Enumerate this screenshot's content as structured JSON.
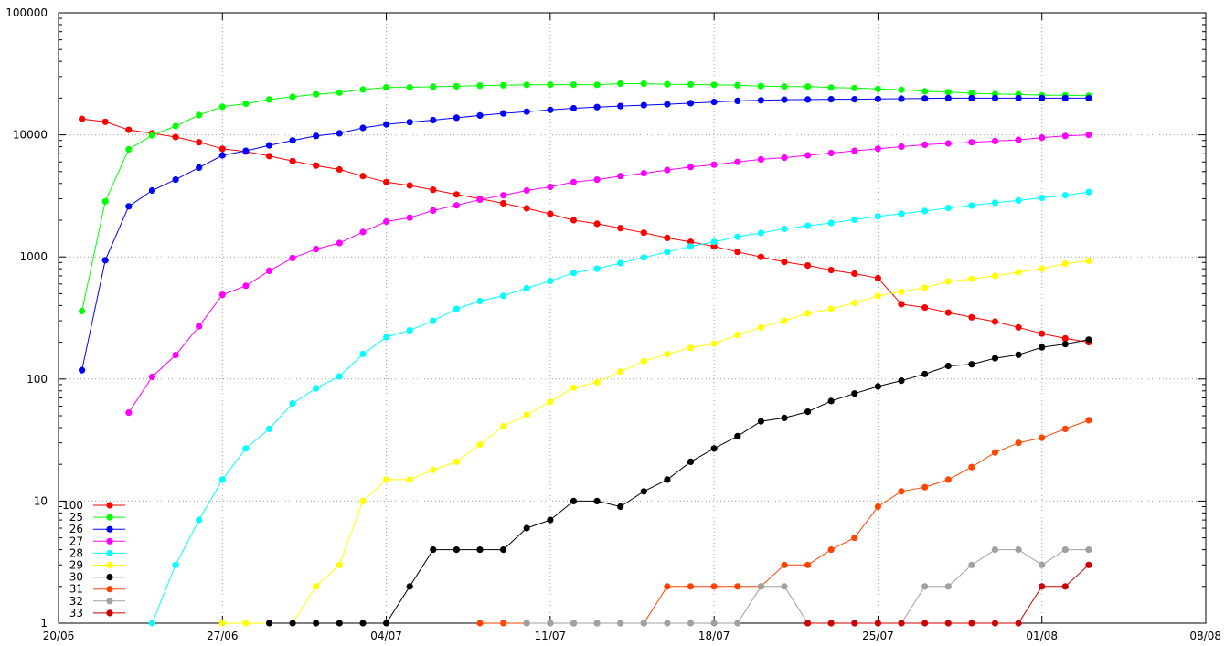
{
  "chart_data": {
    "type": "line",
    "title": "",
    "xlabel": "",
    "ylabel": "",
    "yscale": "log",
    "ylim": [
      1,
      100000
    ],
    "xlim": [
      "2020-06-20",
      "2020-08-08"
    ],
    "grid": true,
    "legend_position": "bottom-left",
    "x_tick_labels": [
      "20/06",
      "27/06",
      "04/07",
      "11/07",
      "18/07",
      "25/07",
      "01/08",
      "08/08"
    ],
    "y_tick_labels": [
      "1",
      "10",
      "100",
      "1000",
      "10000",
      "100000"
    ],
    "x": [
      "2020-06-21",
      "2020-06-22",
      "2020-06-23",
      "2020-06-24",
      "2020-06-25",
      "2020-06-26",
      "2020-06-27",
      "2020-06-28",
      "2020-06-29",
      "2020-06-30",
      "2020-07-01",
      "2020-07-02",
      "2020-07-03",
      "2020-07-04",
      "2020-07-05",
      "2020-07-06",
      "2020-07-07",
      "2020-07-08",
      "2020-07-09",
      "2020-07-10",
      "2020-07-11",
      "2020-07-12",
      "2020-07-13",
      "2020-07-14",
      "2020-07-15",
      "2020-07-16",
      "2020-07-17",
      "2020-07-18",
      "2020-07-19",
      "2020-07-20",
      "2020-07-21",
      "2020-07-22",
      "2020-07-23",
      "2020-07-24",
      "2020-07-25",
      "2020-07-26",
      "2020-07-27",
      "2020-07-28",
      "2020-07-29",
      "2020-07-30",
      "2020-07-31",
      "2020-08-01",
      "2020-08-02",
      "2020-08-03"
    ],
    "series": [
      {
        "name": "100",
        "color": "#ff0000",
        "values": [
          13500,
          12800,
          11000,
          10300,
          9600,
          8700,
          7700,
          7300,
          6700,
          6100,
          5600,
          5200,
          4600,
          4100,
          3850,
          3550,
          3250,
          3000,
          2750,
          2500,
          2250,
          2000,
          1870,
          1720,
          1580,
          1430,
          1330,
          1220,
          1100,
          1000,
          910,
          850,
          780,
          730,
          670,
          410,
          385,
          350,
          320,
          295,
          265,
          235,
          215,
          200
        ]
      },
      {
        "name": "25",
        "color": "#00ff00",
        "values": [
          360,
          2850,
          7600,
          9900,
          11800,
          14500,
          17000,
          18000,
          19500,
          20500,
          21500,
          22200,
          23500,
          24500,
          24500,
          24800,
          25000,
          25300,
          25500,
          25700,
          25800,
          25800,
          25700,
          26300,
          26300,
          26000,
          25900,
          25700,
          25500,
          25100,
          24900,
          24900,
          24400,
          24200,
          23800,
          23400,
          22800,
          22400,
          22000,
          21600,
          21500,
          21100,
          21100,
          20900
        ]
      },
      {
        "name": "26",
        "color": "#0000ff",
        "values": [
          118,
          940,
          2600,
          3500,
          4300,
          5400,
          6800,
          7400,
          8200,
          9000,
          9800,
          10300,
          11400,
          12200,
          12700,
          13200,
          13800,
          14400,
          15000,
          15500,
          16000,
          16500,
          16900,
          17200,
          17500,
          17800,
          18200,
          18600,
          19000,
          19200,
          19400,
          19500,
          19600,
          19600,
          19700,
          19800,
          19900,
          20000,
          20000,
          20000,
          20000,
          20000,
          20000,
          20000
        ]
      },
      {
        "name": "27",
        "color": "#ff00ff",
        "values": [
          null,
          null,
          53,
          104,
          157,
          270,
          490,
          580,
          770,
          980,
          1160,
          1300,
          1600,
          1950,
          2100,
          2400,
          2650,
          2950,
          3200,
          3500,
          3750,
          4100,
          4300,
          4600,
          4850,
          5150,
          5450,
          5700,
          6000,
          6300,
          6500,
          6800,
          7100,
          7400,
          7700,
          8000,
          8300,
          8500,
          8700,
          8900,
          9100,
          9500,
          9800,
          10000
        ]
      },
      {
        "name": "28",
        "color": "#00ffff",
        "values": [
          null,
          null,
          null,
          1,
          3,
          7,
          15,
          27,
          39,
          63,
          84,
          105,
          160,
          220,
          250,
          300,
          375,
          435,
          480,
          555,
          635,
          740,
          800,
          890,
          990,
          1100,
          1220,
          1330,
          1460,
          1570,
          1700,
          1800,
          1900,
          2020,
          2150,
          2260,
          2380,
          2520,
          2640,
          2780,
          2900,
          3050,
          3200,
          3400
        ]
      },
      {
        "name": "29",
        "color": "#ffff00",
        "values": [
          null,
          null,
          null,
          null,
          null,
          null,
          1,
          1,
          1,
          1,
          2,
          3,
          10,
          15,
          15,
          18,
          21,
          29,
          41,
          51,
          65,
          85,
          94,
          115,
          140,
          160,
          180,
          195,
          230,
          265,
          300,
          345,
          375,
          420,
          480,
          520,
          560,
          630,
          660,
          700,
          750,
          800,
          880,
          930
        ]
      },
      {
        "name": "30",
        "color": "#000000",
        "values": [
          null,
          null,
          null,
          null,
          null,
          null,
          null,
          null,
          1,
          1,
          1,
          1,
          1,
          1,
          2,
          4,
          4,
          4,
          4,
          6,
          7,
          10,
          10,
          9,
          12,
          15,
          21,
          27,
          34,
          45,
          48,
          54,
          66,
          76,
          87,
          97,
          110,
          128,
          132,
          148,
          158,
          182,
          193,
          210
        ]
      },
      {
        "name": "31",
        "color": "#ff4500",
        "values": [
          null,
          null,
          null,
          null,
          null,
          null,
          null,
          null,
          null,
          null,
          null,
          null,
          null,
          null,
          null,
          null,
          null,
          1,
          1,
          1,
          1,
          1,
          1,
          1,
          1,
          2,
          2,
          2,
          2,
          2,
          3,
          3,
          4,
          5,
          9,
          12,
          13,
          15,
          19,
          25,
          30,
          33,
          39,
          46
        ]
      },
      {
        "name": "32",
        "color": "#a0a0a0",
        "values": [
          null,
          null,
          null,
          null,
          null,
          null,
          null,
          null,
          null,
          null,
          null,
          null,
          null,
          null,
          null,
          null,
          null,
          null,
          null,
          1,
          1,
          1,
          1,
          1,
          1,
          1,
          1,
          1,
          1,
          2,
          2,
          1,
          1,
          1,
          1,
          1,
          2,
          2,
          3,
          4,
          4,
          3,
          4,
          4
        ]
      },
      {
        "name": "33",
        "color": "#cc0000",
        "values": [
          null,
          null,
          null,
          null,
          null,
          null,
          null,
          null,
          null,
          null,
          null,
          null,
          null,
          null,
          null,
          null,
          null,
          null,
          null,
          null,
          null,
          null,
          null,
          null,
          null,
          null,
          null,
          null,
          null,
          null,
          null,
          1,
          1,
          1,
          1,
          1,
          1,
          1,
          1,
          1,
          1,
          2,
          2,
          3
        ]
      }
    ]
  }
}
